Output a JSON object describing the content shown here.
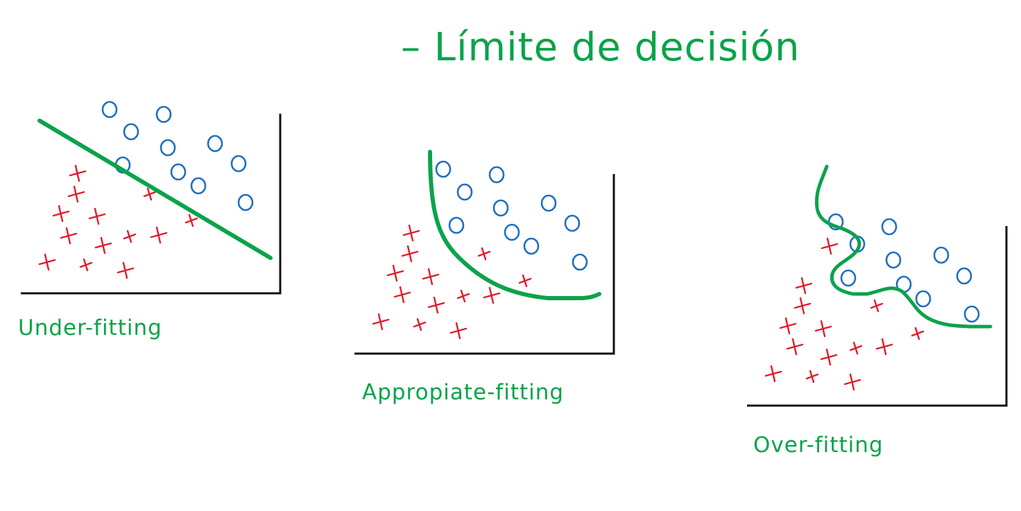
{
  "title": "– Límite de decisión",
  "colors": {
    "boundary": "#0aa34a",
    "text": "#0aa34a",
    "circle": "#1f6fc0",
    "cross": "#e21b2a",
    "axis": "#111111"
  },
  "panels": [
    {
      "caption": "Under-fitting"
    },
    {
      "caption": "Appropiate-fitting"
    },
    {
      "caption": "Over-fitting"
    }
  ]
}
